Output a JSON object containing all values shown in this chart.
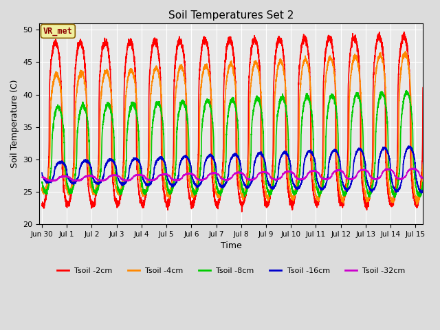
{
  "title": "Soil Temperatures Set 2",
  "xlabel": "Time",
  "ylabel": "Soil Temperature (C)",
  "ylim": [
    20,
    51
  ],
  "yticks": [
    20,
    25,
    30,
    35,
    40,
    45,
    50
  ],
  "background_color": "#dcdcdc",
  "plot_bg_color": "#e8e8e8",
  "annotation_text": "VR_met",
  "annotation_color": "#8B0000",
  "annotation_bg": "#f0f0a0",
  "annotation_border": "#8B6000",
  "series": [
    {
      "label": "Tsoil -2cm",
      "color": "#ff0000",
      "lw": 1.2
    },
    {
      "label": "Tsoil -4cm",
      "color": "#ff8800",
      "lw": 1.2
    },
    {
      "label": "Tsoil -8cm",
      "color": "#00cc00",
      "lw": 1.2
    },
    {
      "label": "Tsoil -16cm",
      "color": "#0000cc",
      "lw": 1.2
    },
    {
      "label": "Tsoil -32cm",
      "color": "#cc00cc",
      "lw": 1.2
    }
  ],
  "xmin_day": -0.1,
  "xmax_day": 15.3,
  "xtick_positions": [
    0,
    1,
    2,
    3,
    4,
    5,
    6,
    7,
    8,
    9,
    10,
    11,
    12,
    13,
    14,
    15
  ],
  "xtick_labels": [
    "Jun 30",
    "Jul 1",
    "Jul 2",
    "Jul 3",
    "Jul 4",
    "Jul 5",
    "Jul 6",
    "Jul 7",
    "Jul 8",
    "Jul 9",
    "Jul 10",
    "Jul 11",
    "Jul 12",
    "Jul 13",
    "Jul 14",
    "Jul 15"
  ],
  "grid": true,
  "grid_color": "white",
  "grid_lw": 0.8
}
